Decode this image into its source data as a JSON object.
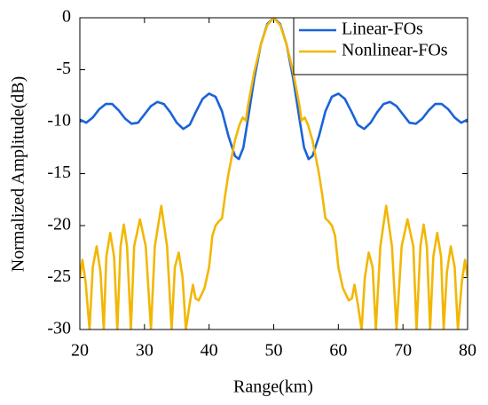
{
  "chart_data": {
    "type": "line",
    "x_label": "Range(km)",
    "y_label": "Normalized Amplitude(dB)",
    "xlim": [
      20,
      80
    ],
    "xticks": [
      20,
      30,
      40,
      50,
      60,
      70,
      80
    ],
    "ylim": [
      -30,
      0
    ],
    "yticks": [
      0,
      -5,
      -10,
      -15,
      -20,
      -25,
      -30
    ],
    "legend": "upper right",
    "series": [
      {
        "name": "Linear-FOs",
        "color": "#1a63d8",
        "x": [
          20,
          21,
          22,
          23,
          24,
          25,
          26,
          27,
          28,
          29,
          30,
          31,
          32,
          33,
          34,
          35,
          36,
          37,
          38,
          39,
          40,
          41,
          42,
          43,
          44,
          44.6,
          45.3,
          46,
          47,
          48,
          49,
          50,
          51,
          52,
          53,
          54,
          54.7,
          55.4,
          56,
          57,
          58,
          59,
          60,
          61,
          62,
          63,
          64,
          65,
          66,
          67,
          68,
          69,
          70,
          71,
          72,
          73,
          74,
          75,
          76,
          77,
          78,
          79,
          80
        ],
        "values": [
          -9.8,
          -10.1,
          -9.6,
          -8.8,
          -8.3,
          -8.3,
          -8.9,
          -9.7,
          -10.2,
          -10.1,
          -9.3,
          -8.5,
          -8.1,
          -8.3,
          -9.1,
          -10.1,
          -10.7,
          -10.3,
          -9,
          -7.8,
          -7.3,
          -7.6,
          -9,
          -11.4,
          -13.3,
          -13.6,
          -12.5,
          -9.8,
          -5.8,
          -2.6,
          -0.6,
          0,
          -0.6,
          -2.6,
          -5.8,
          -9.8,
          -12.5,
          -13.6,
          -13.3,
          -11.4,
          -9,
          -7.6,
          -7.3,
          -7.8,
          -9,
          -10.3,
          -10.7,
          -10.1,
          -9.1,
          -8.3,
          -8.1,
          -8.5,
          -9.3,
          -10.1,
          -10.2,
          -9.7,
          -8.9,
          -8.3,
          -8.3,
          -8.8,
          -9.6,
          -10.1,
          -9.8
        ]
      },
      {
        "name": "Nonlinear-FOs",
        "color": "#f2b705",
        "x": [
          20,
          20.4,
          20.9,
          21.5,
          22,
          22.6,
          23.2,
          23.7,
          24.1,
          24.7,
          25.3,
          25.8,
          26.3,
          26.8,
          27.3,
          27.9,
          28.4,
          29.3,
          30.2,
          31,
          31.6,
          32.6,
          33.5,
          34.2,
          34.7,
          35.3,
          35.9,
          36.4,
          37,
          37.5,
          37.9,
          38.4,
          39.3,
          40,
          40.5,
          41,
          41.5,
          42,
          42.5,
          43,
          44,
          44.7,
          45.2,
          45.7,
          46,
          47,
          48,
          49,
          50,
          51,
          52,
          53,
          54,
          54.3,
          54.8,
          55.3,
          56,
          57,
          57.5,
          58,
          58.5,
          59,
          59.5,
          60,
          60.7,
          61.6,
          62.1,
          62.5,
          63,
          63.6,
          64.1,
          64.7,
          65.3,
          65.8,
          66.5,
          67.4,
          68.3,
          69,
          69.8,
          70.7,
          71.6,
          72.1,
          72.7,
          73.2,
          73.7,
          74.2,
          74.7,
          75.3,
          75.9,
          76.3,
          76.8,
          77.4,
          78,
          78.5,
          79.1,
          79.6,
          80
        ],
        "values": [
          -25,
          -23.3,
          -25.5,
          -30,
          -24,
          -22,
          -24.5,
          -30,
          -23,
          -20.7,
          -23,
          -30,
          -22,
          -19.9,
          -22,
          -30,
          -22,
          -19.4,
          -22,
          -30,
          -22,
          -18.1,
          -22,
          -30,
          -24,
          -22.6,
          -25,
          -30,
          -27.5,
          -25.7,
          -27,
          -27.2,
          -26,
          -24,
          -21,
          -20,
          -19.6,
          -19.3,
          -17,
          -15,
          -11.8,
          -10.3,
          -9.6,
          -9.9,
          -8.5,
          -5.2,
          -2.6,
          -0.7,
          0,
          -0.7,
          -2.6,
          -5.2,
          -8.5,
          -9.9,
          -9.6,
          -10.3,
          -11.8,
          -15,
          -17,
          -19.3,
          -19.6,
          -20,
          -21,
          -24,
          -26,
          -27.2,
          -27,
          -25.7,
          -27.5,
          -30,
          -25,
          -22.6,
          -24,
          -30,
          -22,
          -18.1,
          -22,
          -30,
          -22,
          -19.4,
          -22,
          -30,
          -22,
          -19.9,
          -22,
          -30,
          -23,
          -20.7,
          -23,
          -30,
          -24.5,
          -22,
          -24,
          -30,
          -25.5,
          -23.3,
          -25
        ]
      }
    ]
  }
}
